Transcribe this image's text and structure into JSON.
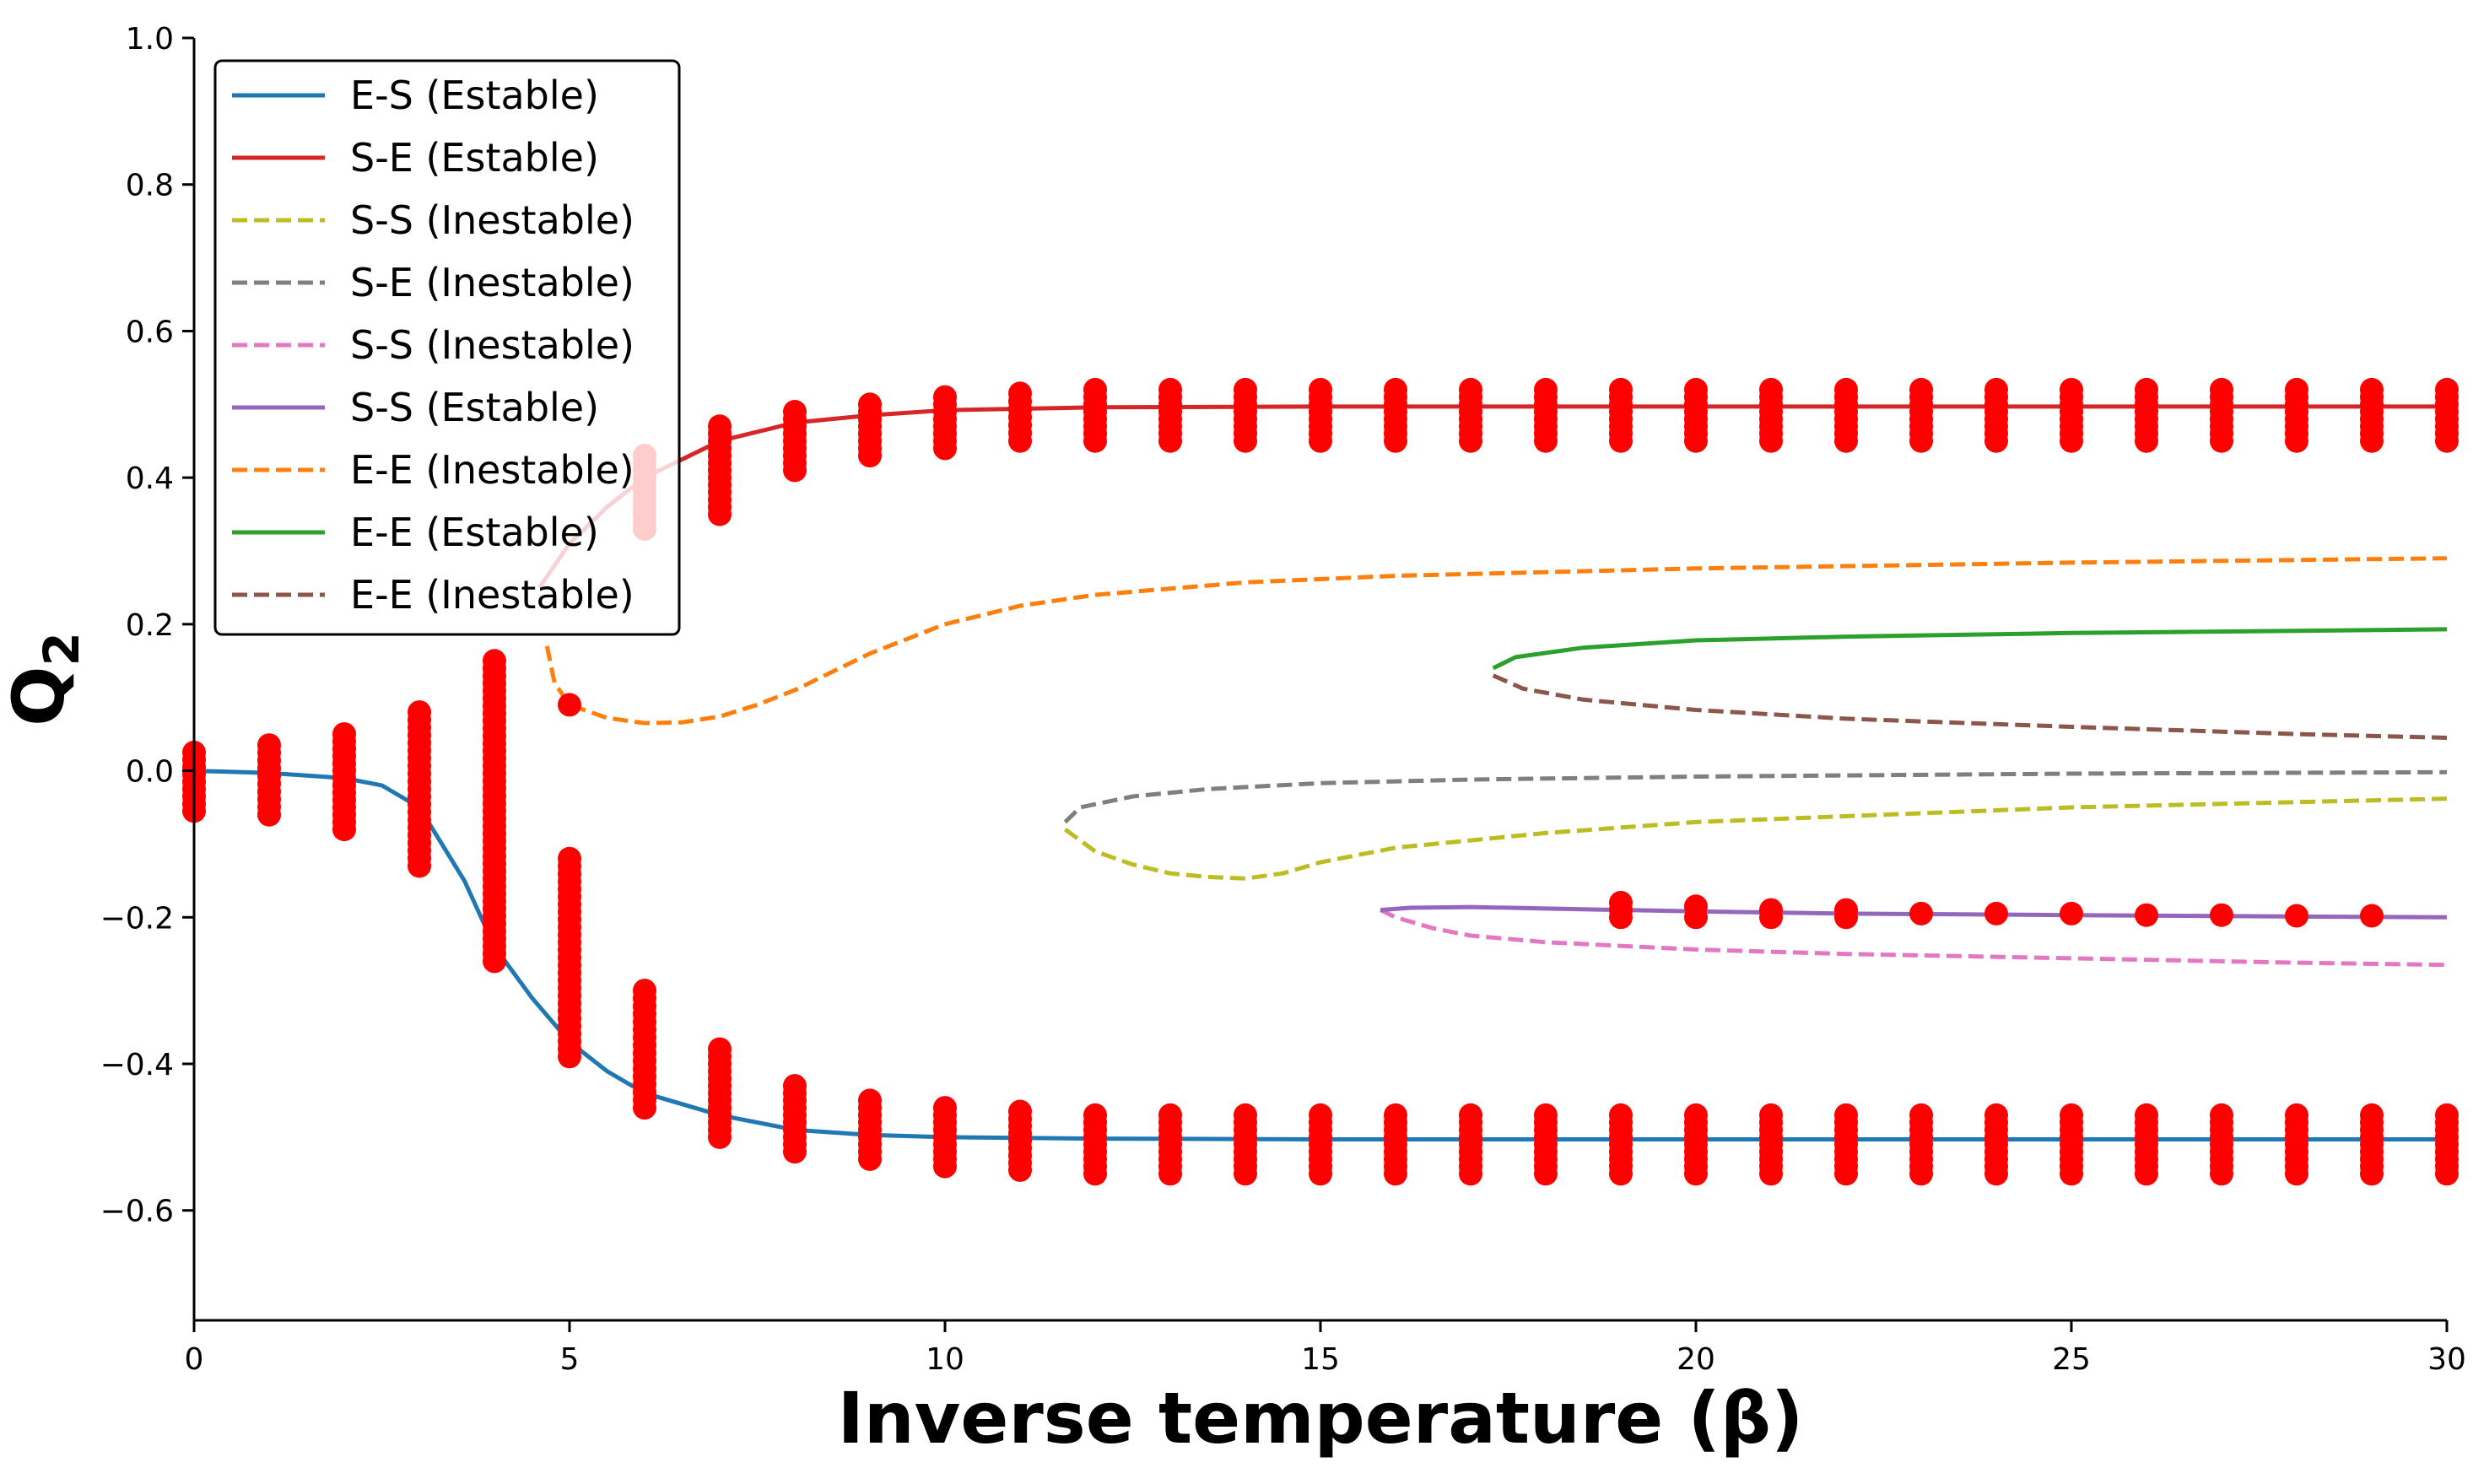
{
  "chart_data": {
    "type": "line",
    "title": "",
    "xlabel": "Inverse temperature (β)",
    "ylabel": "Q",
    "ylabel_subscript": "2",
    "xlim": [
      0,
      30
    ],
    "ylim": [
      -0.75,
      1.0
    ],
    "xticks": [
      0,
      5,
      10,
      15,
      20,
      25,
      30
    ],
    "xtick_labels": [
      "0",
      "5",
      "10",
      "15",
      "20",
      "25",
      "30"
    ],
    "yticks": [
      -0.6,
      -0.4,
      -0.2,
      0.0,
      0.2,
      0.4,
      0.6,
      0.8,
      1.0
    ],
    "ytick_labels": [
      "−0.6",
      "−0.4",
      "−0.2",
      "0.0",
      "0.2",
      "0.4",
      "0.6",
      "0.8",
      "1.0"
    ],
    "legend_position": "top-left",
    "series": [
      {
        "name": "E-S (Estable)",
        "color": "#1f77b4",
        "style": "solid",
        "x": [
          0,
          1,
          2,
          2.5,
          3,
          3.3,
          3.6,
          4,
          4.5,
          5,
          5.5,
          6,
          7,
          8,
          9,
          10,
          12,
          15,
          20,
          25,
          30
        ],
        "y": [
          0.0,
          -0.003,
          -0.01,
          -0.02,
          -0.05,
          -0.1,
          -0.15,
          -0.24,
          -0.31,
          -0.37,
          -0.41,
          -0.44,
          -0.47,
          -0.49,
          -0.497,
          -0.5,
          -0.502,
          -0.503,
          -0.503,
          -0.503,
          -0.503
        ]
      },
      {
        "name": "S-E (Estable)",
        "color": "#d62728",
        "style": "solid",
        "x": [
          4.6,
          5,
          5.5,
          6,
          7,
          8,
          9,
          10,
          12,
          15,
          20,
          25,
          30
        ],
        "y": [
          0.25,
          0.31,
          0.36,
          0.4,
          0.45,
          0.475,
          0.485,
          0.492,
          0.496,
          0.497,
          0.497,
          0.497,
          0.497
        ]
      },
      {
        "name": "S-S (Inestable)",
        "color": "#bcbd22",
        "style": "dashed",
        "x": [
          11.6,
          12,
          12.5,
          13,
          13.5,
          14,
          14.5,
          15,
          16,
          18,
          20,
          25,
          30
        ],
        "y": [
          -0.08,
          -0.11,
          -0.128,
          -0.14,
          -0.145,
          -0.147,
          -0.14,
          -0.125,
          -0.105,
          -0.085,
          -0.07,
          -0.05,
          -0.038
        ]
      },
      {
        "name": "S-E (Inestable)",
        "color": "#7f7f7f",
        "style": "dashed",
        "x": [
          11.6,
          11.8,
          12.5,
          13.5,
          15,
          17,
          20,
          25,
          30
        ],
        "y": [
          -0.07,
          -0.05,
          -0.035,
          -0.025,
          -0.017,
          -0.012,
          -0.008,
          -0.004,
          -0.002
        ]
      },
      {
        "name": "S-S (Inestable)",
        "color": "#e377c2",
        "style": "dashed",
        "x": [
          15.8,
          16,
          16.5,
          17,
          18,
          20,
          22,
          25,
          28,
          30
        ],
        "y": [
          -0.19,
          -0.2,
          -0.215,
          -0.225,
          -0.234,
          -0.244,
          -0.25,
          -0.256,
          -0.262,
          -0.265
        ]
      },
      {
        "name": "S-S (Estable)",
        "color": "#9467bd",
        "style": "solid",
        "x": [
          15.8,
          16.2,
          17,
          18,
          20,
          22,
          25,
          28,
          30
        ],
        "y": [
          -0.19,
          -0.187,
          -0.186,
          -0.188,
          -0.192,
          -0.195,
          -0.197,
          -0.199,
          -0.2
        ]
      },
      {
        "name": "E-E (Inestable)",
        "color": "#ff7f0e",
        "style": "dashed",
        "x": [
          4.7,
          4.8,
          5,
          5.5,
          6,
          6.5,
          7,
          7.5,
          8,
          8.5,
          9,
          10,
          11,
          12,
          14,
          16,
          20,
          25,
          30
        ],
        "y": [
          0.17,
          0.12,
          0.09,
          0.072,
          0.065,
          0.066,
          0.074,
          0.09,
          0.11,
          0.135,
          0.16,
          0.2,
          0.225,
          0.24,
          0.257,
          0.266,
          0.276,
          0.284,
          0.29
        ]
      },
      {
        "name": "E-E (Estable)",
        "color": "#2ca02c",
        "style": "solid",
        "x": [
          17.3,
          17.6,
          18.5,
          20,
          22,
          25,
          28,
          30
        ],
        "y": [
          0.14,
          0.155,
          0.168,
          0.178,
          0.183,
          0.188,
          0.191,
          0.193
        ]
      },
      {
        "name": "E-E (Inestable)",
        "color": "#8c564b",
        "style": "dashed",
        "x": [
          17.3,
          17.7,
          18.5,
          20,
          22,
          25,
          28,
          30
        ],
        "y": [
          0.13,
          0.112,
          0.097,
          0.083,
          0.071,
          0.06,
          0.05,
          0.045
        ]
      }
    ],
    "scatter": {
      "name": "simulations",
      "color": "#ff0000",
      "clusters": [
        {
          "x": 0,
          "ymin": -0.055,
          "ymax": 0.025
        },
        {
          "x": 1,
          "ymin": -0.06,
          "ymax": 0.035
        },
        {
          "x": 2,
          "ymin": -0.08,
          "ymax": 0.05
        },
        {
          "x": 3,
          "ymin": -0.13,
          "ymax": 0.08
        },
        {
          "x": 4,
          "ymin": -0.26,
          "ymax": 0.15
        },
        {
          "x": 5,
          "ymin": -0.39,
          "ymax": -0.12
        },
        {
          "x": 5,
          "ymin": 0.09,
          "ymax": 0.09
        },
        {
          "x": 6,
          "ymin": -0.46,
          "ymax": -0.3
        },
        {
          "x": 6,
          "ymin": 0.33,
          "ymax": 0.43
        },
        {
          "x": 7,
          "ymin": -0.5,
          "ymax": -0.38
        },
        {
          "x": 7,
          "ymin": 0.35,
          "ymax": 0.47
        },
        {
          "x": 8,
          "ymin": -0.52,
          "ymax": -0.43
        },
        {
          "x": 8,
          "ymin": 0.41,
          "ymax": 0.49
        },
        {
          "x": 9,
          "ymin": -0.53,
          "ymax": -0.45
        },
        {
          "x": 9,
          "ymin": 0.43,
          "ymax": 0.5
        },
        {
          "x": 10,
          "ymin": -0.54,
          "ymax": -0.46
        },
        {
          "x": 10,
          "ymin": 0.44,
          "ymax": 0.51
        },
        {
          "x": 11,
          "ymin": -0.545,
          "ymax": -0.465
        },
        {
          "x": 11,
          "ymin": 0.45,
          "ymax": 0.515
        },
        {
          "x": 12,
          "ymin": -0.55,
          "ymax": -0.47
        },
        {
          "x": 12,
          "ymin": 0.45,
          "ymax": 0.52
        },
        {
          "x": 13,
          "ymin": -0.55,
          "ymax": -0.47
        },
        {
          "x": 13,
          "ymin": 0.45,
          "ymax": 0.52
        },
        {
          "x": 14,
          "ymin": -0.55,
          "ymax": -0.47
        },
        {
          "x": 14,
          "ymin": 0.45,
          "ymax": 0.52
        },
        {
          "x": 15,
          "ymin": -0.55,
          "ymax": -0.47
        },
        {
          "x": 15,
          "ymin": 0.45,
          "ymax": 0.52
        },
        {
          "x": 16,
          "ymin": -0.55,
          "ymax": -0.47
        },
        {
          "x": 16,
          "ymin": 0.45,
          "ymax": 0.52
        },
        {
          "x": 17,
          "ymin": -0.55,
          "ymax": -0.47
        },
        {
          "x": 17,
          "ymin": 0.45,
          "ymax": 0.52
        },
        {
          "x": 18,
          "ymin": -0.55,
          "ymax": -0.47
        },
        {
          "x": 18,
          "ymin": 0.45,
          "ymax": 0.52
        },
        {
          "x": 19,
          "ymin": -0.55,
          "ymax": -0.47
        },
        {
          "x": 19,
          "ymin": 0.45,
          "ymax": 0.52
        },
        {
          "x": 19,
          "ymin": -0.2,
          "ymax": -0.18
        },
        {
          "x": 20,
          "ymin": -0.55,
          "ymax": -0.47
        },
        {
          "x": 20,
          "ymin": 0.45,
          "ymax": 0.52
        },
        {
          "x": 20,
          "ymin": -0.2,
          "ymax": -0.185
        },
        {
          "x": 21,
          "ymin": -0.55,
          "ymax": -0.47
        },
        {
          "x": 21,
          "ymin": 0.45,
          "ymax": 0.52
        },
        {
          "x": 21,
          "ymin": -0.2,
          "ymax": -0.19
        },
        {
          "x": 22,
          "ymin": -0.55,
          "ymax": -0.47
        },
        {
          "x": 22,
          "ymin": 0.45,
          "ymax": 0.52
        },
        {
          "x": 22,
          "ymin": -0.2,
          "ymax": -0.19
        },
        {
          "x": 23,
          "ymin": -0.55,
          "ymax": -0.47
        },
        {
          "x": 23,
          "ymin": 0.45,
          "ymax": 0.52
        },
        {
          "x": 23,
          "ymin": -0.2,
          "ymax": -0.195
        },
        {
          "x": 24,
          "ymin": -0.55,
          "ymax": -0.47
        },
        {
          "x": 24,
          "ymin": 0.45,
          "ymax": 0.52
        },
        {
          "x": 24,
          "ymin": -0.2,
          "ymax": -0.195
        },
        {
          "x": 25,
          "ymin": -0.55,
          "ymax": -0.47
        },
        {
          "x": 25,
          "ymin": 0.45,
          "ymax": 0.52
        },
        {
          "x": 25,
          "ymin": -0.2,
          "ymax": -0.195
        },
        {
          "x": 26,
          "ymin": -0.55,
          "ymax": -0.47
        },
        {
          "x": 26,
          "ymin": 0.45,
          "ymax": 0.52
        },
        {
          "x": 26,
          "ymin": -0.2,
          "ymax": -0.197
        },
        {
          "x": 27,
          "ymin": -0.55,
          "ymax": -0.47
        },
        {
          "x": 27,
          "ymin": 0.45,
          "ymax": 0.52
        },
        {
          "x": 27,
          "ymin": -0.2,
          "ymax": -0.197
        },
        {
          "x": 28,
          "ymin": -0.55,
          "ymax": -0.47
        },
        {
          "x": 28,
          "ymin": 0.45,
          "ymax": 0.52
        },
        {
          "x": 28,
          "ymin": -0.2,
          "ymax": -0.198
        },
        {
          "x": 29,
          "ymin": -0.55,
          "ymax": -0.47
        },
        {
          "x": 29,
          "ymin": 0.45,
          "ymax": 0.52
        },
        {
          "x": 29,
          "ymin": -0.2,
          "ymax": -0.198
        },
        {
          "x": 30,
          "ymin": -0.55,
          "ymax": -0.47
        },
        {
          "x": 30,
          "ymin": 0.45,
          "ymax": 0.52
        }
      ]
    }
  }
}
